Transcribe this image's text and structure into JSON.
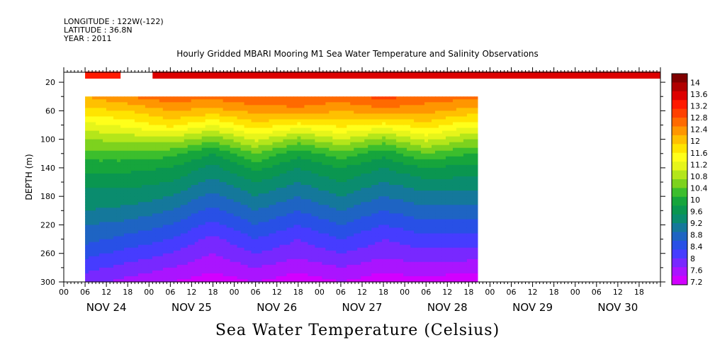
{
  "header": {
    "longitude": "LONGITUDE : 122W(-122)",
    "latitude": "LATITUDE : 36.8N",
    "year": "YEAR : 2011"
  },
  "chart_data": {
    "type": "heatmap",
    "title": "Hourly Gridded MBARI Mooring M1 Sea Water Temperature and Salinity Observations",
    "bottom_title": "Sea Water Temperature (Celsius)",
    "ylabel": "DEPTH (m)",
    "ylim": [
      300,
      6
    ],
    "y_ticks": [
      20,
      60,
      100,
      140,
      180,
      220,
      260,
      300
    ],
    "x_hour_ticks": [
      "00",
      "06",
      "12",
      "18",
      "00",
      "06",
      "12",
      "18",
      "00",
      "06",
      "12",
      "18",
      "00",
      "06",
      "12",
      "18",
      "00",
      "06",
      "12",
      "18",
      "00",
      "06",
      "12",
      "18",
      "00",
      "06",
      "12",
      "18"
    ],
    "x_day_labels": [
      "NOV 24",
      "NOV 25",
      "NOV 26",
      "NOV 27",
      "NOV 28",
      "NOV 29",
      "NOV 30"
    ],
    "xlim_hours": [
      0,
      168
    ],
    "colorbar": {
      "labels": [
        "14",
        "13.6",
        "13.2",
        "12.8",
        "12.4",
        "12",
        "11.6",
        "11.2",
        "10.8",
        "10.4",
        "10",
        "9.6",
        "9.2",
        "8.8",
        "8.4",
        "8",
        "7.6",
        "7.2"
      ],
      "colors": [
        "#800000",
        "#b00000",
        "#dd0000",
        "#ff1a00",
        "#ff4000",
        "#ff6a00",
        "#ff9600",
        "#ffc000",
        "#ffe400",
        "#ffff1a",
        "#e6f51a",
        "#b4e61a",
        "#7dd21e",
        "#3cbe2d",
        "#16a53c",
        "#0a9650",
        "#0a8c6e",
        "#14789b",
        "#1e64c3",
        "#2850e6",
        "#463cff",
        "#7828ff",
        "#aa14ff",
        "#d200ff"
      ],
      "min": 7.2,
      "max": 14.4
    },
    "surface_temperature": {
      "depth_m": 10,
      "segments": [
        {
          "start_hour": 6,
          "end_hour": 16,
          "temp": 13.4
        },
        {
          "start_hour": 25,
          "end_hour": 168,
          "temp": 13.5
        }
      ]
    },
    "profile_data": {
      "start_hour": 6,
      "end_hour": 116.5,
      "depth_top_m": 40,
      "depth_bottom_m": 300,
      "depths_m": [
        40,
        60,
        80,
        100,
        120,
        140,
        160,
        180,
        200,
        220,
        240,
        260,
        280,
        300
      ],
      "hours": [
        6,
        18,
        30,
        42,
        54,
        66,
        78,
        90,
        102,
        114
      ],
      "temperature": [
        [
          12.3,
          12.6,
          12.8,
          12.7,
          12.9,
          12.9,
          12.8,
          13.0,
          12.8,
          12.7
        ],
        [
          11.9,
          12.0,
          12.3,
          12.2,
          12.4,
          12.5,
          12.3,
          12.5,
          12.4,
          12.2
        ],
        [
          11.3,
          11.5,
          11.8,
          11.4,
          11.9,
          11.6,
          11.8,
          11.6,
          11.9,
          11.5
        ],
        [
          10.8,
          10.9,
          11.0,
          10.6,
          11.2,
          10.7,
          11.1,
          10.7,
          11.2,
          10.8
        ],
        [
          10.4,
          10.4,
          10.3,
          9.9,
          10.5,
          10.0,
          10.4,
          10.0,
          10.5,
          10.2
        ],
        [
          10.0,
          10.0,
          9.9,
          9.5,
          10.0,
          9.6,
          9.9,
          9.6,
          9.9,
          9.8
        ],
        [
          9.7,
          9.7,
          9.6,
          9.2,
          9.6,
          9.3,
          9.6,
          9.3,
          9.5,
          9.5
        ],
        [
          9.5,
          9.5,
          9.3,
          8.9,
          9.3,
          9.0,
          9.3,
          9.0,
          9.2,
          9.2
        ],
        [
          9.3,
          9.2,
          9.0,
          8.6,
          9.0,
          8.7,
          9.0,
          8.7,
          8.9,
          8.9
        ],
        [
          9.0,
          8.9,
          8.7,
          8.3,
          8.7,
          8.4,
          8.7,
          8.4,
          8.6,
          8.6
        ],
        [
          8.8,
          8.6,
          8.4,
          8.0,
          8.4,
          8.1,
          8.4,
          8.1,
          8.3,
          8.3
        ],
        [
          8.5,
          8.3,
          8.1,
          7.8,
          8.1,
          7.9,
          8.1,
          7.9,
          8.0,
          8.0
        ],
        [
          8.2,
          8.0,
          7.8,
          7.6,
          7.8,
          7.6,
          7.8,
          7.6,
          7.7,
          7.6
        ],
        [
          7.9,
          7.7,
          7.5,
          7.3,
          7.5,
          7.3,
          7.5,
          7.3,
          7.4,
          7.3
        ]
      ]
    }
  }
}
